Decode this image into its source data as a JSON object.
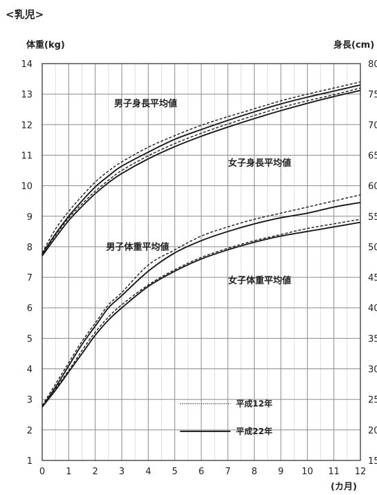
{
  "section_label": "<乳児>",
  "chart_data": {
    "type": "line",
    "x_axis": {
      "label": "(カ月)",
      "range": [
        0,
        12
      ],
      "ticks": [
        0,
        1,
        2,
        3,
        4,
        5,
        6,
        7,
        8,
        9,
        10,
        11,
        12
      ]
    },
    "y_left": {
      "label": "体重(kg)",
      "range": [
        1,
        14
      ],
      "ticks": [
        1,
        2,
        3,
        4,
        5,
        6,
        7,
        8,
        9,
        10,
        11,
        12,
        13,
        14
      ]
    },
    "y_right": {
      "label": "身長(cm)",
      "range": [
        15,
        80
      ],
      "ticks": [
        15,
        20,
        25,
        30,
        35,
        40,
        45,
        50,
        55,
        60,
        65,
        70,
        75,
        80
      ]
    },
    "grid": true,
    "legend": {
      "placement": "bottom-right",
      "entries": [
        {
          "label": "平成12年",
          "style": "dashed"
        },
        {
          "label": "平成22年",
          "style": "solid"
        }
      ]
    },
    "annotations": [
      {
        "text": "男子身長平均値",
        "x": 3.9,
        "y": 12.6
      },
      {
        "text": "女子身長平均値",
        "x": 8.2,
        "y": 10.65
      },
      {
        "text": "男子体重平均値",
        "x": 3.6,
        "y": 7.9
      },
      {
        "text": "女子体重平均値",
        "x": 8.2,
        "y": 6.8
      }
    ],
    "x": [
      0,
      0.5,
      1,
      1.5,
      2,
      2.5,
      3,
      4,
      5,
      6,
      7,
      8,
      9,
      10,
      11,
      12
    ],
    "series": [
      {
        "axis": "right",
        "style": "dashed",
        "values": [
          49.0,
          52.9,
          55.8,
          58.3,
          60.6,
          62.4,
          63.9,
          66.3,
          68.2,
          69.9,
          71.3,
          72.6,
          73.9,
          75.0,
          76.0,
          77.0
        ]
      },
      {
        "axis": "right",
        "style": "solid",
        "values": [
          48.8,
          52.1,
          55.0,
          57.5,
          59.8,
          61.6,
          63.2,
          65.5,
          67.6,
          69.2,
          70.7,
          72.1,
          73.4,
          74.5,
          75.5,
          76.5
        ]
      },
      {
        "axis": "right",
        "style": "dashed",
        "values": [
          48.7,
          51.9,
          54.7,
          57.0,
          59.1,
          60.9,
          62.5,
          64.9,
          66.9,
          68.6,
          70.1,
          71.5,
          72.8,
          73.9,
          74.9,
          76.0
        ]
      },
      {
        "axis": "right",
        "style": "solid",
        "values": [
          48.5,
          51.5,
          54.3,
          56.6,
          58.7,
          60.5,
          62.0,
          64.4,
          66.4,
          68.1,
          69.6,
          71.0,
          72.3,
          73.5,
          74.6,
          75.6
        ]
      },
      {
        "axis": "left",
        "style": "dashed",
        "values": [
          2.8,
          3.5,
          4.2,
          4.9,
          5.5,
          6.1,
          6.5,
          7.4,
          7.9,
          8.35,
          8.65,
          8.9,
          9.1,
          9.3,
          9.5,
          9.7
        ]
      },
      {
        "axis": "left",
        "style": "solid",
        "values": [
          2.75,
          3.4,
          4.1,
          4.8,
          5.4,
          6.0,
          6.4,
          7.2,
          7.8,
          8.2,
          8.5,
          8.75,
          8.95,
          9.1,
          9.3,
          9.45
        ]
      },
      {
        "axis": "left",
        "style": "dashed",
        "values": [
          2.75,
          3.35,
          3.95,
          4.6,
          5.2,
          5.7,
          6.1,
          6.75,
          7.25,
          7.65,
          7.95,
          8.2,
          8.4,
          8.6,
          8.75,
          8.9
        ]
      },
      {
        "axis": "left",
        "style": "solid",
        "values": [
          2.75,
          3.3,
          3.9,
          4.5,
          5.1,
          5.6,
          6.0,
          6.7,
          7.2,
          7.6,
          7.9,
          8.15,
          8.35,
          8.5,
          8.65,
          8.8
        ]
      }
    ]
  }
}
